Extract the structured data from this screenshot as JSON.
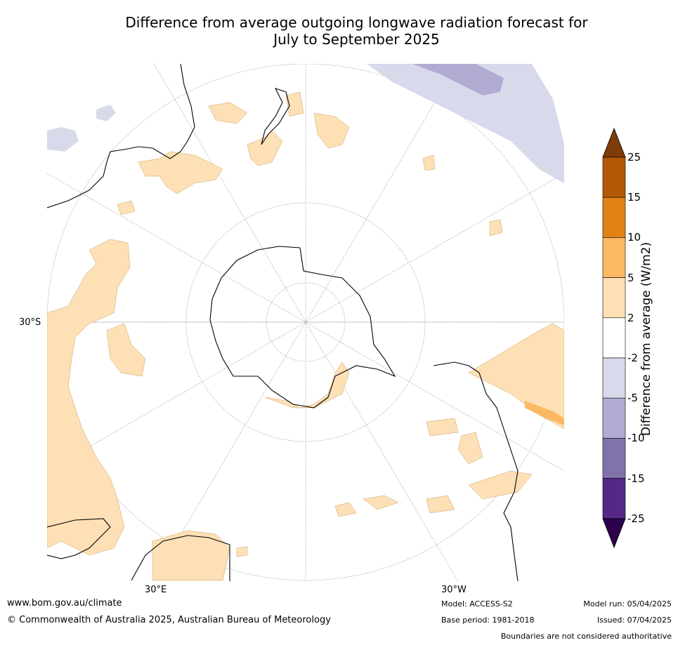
{
  "title_line1": "Difference from average outgoing longwave radiation forecast for",
  "title_line2": "July to September 2025",
  "lat_label": "30°S",
  "lon_labels": {
    "left": "30°E",
    "right": "30°W"
  },
  "colorbar": {
    "label": "Difference from average (W/m2)",
    "ticks": [
      "25",
      "15",
      "10",
      "5",
      "2",
      "-2",
      "-5",
      "-10",
      "-15",
      "-25"
    ],
    "colors": [
      "#b35806",
      "#e08214",
      "#fdb863",
      "#fee0b6",
      "#ffffff",
      "#d8daeb",
      "#b2abd2",
      "#8073ac",
      "#542788"
    ],
    "over_color": "#7f3b08",
    "under_color": "#2d004b"
  },
  "footer": {
    "website": "www.bom.gov.au/climate",
    "copyright": "© Commonwealth of Australia 2025, Australian Bureau of Meteorology",
    "model": "Model: ACCESS-S2",
    "base_period": "Base period: 1981-2018",
    "model_run": "Model run: 05/04/2025",
    "issued": "Issued: 07/04/2025",
    "disclaimer": "Boundaries are not considered authoritative"
  }
}
